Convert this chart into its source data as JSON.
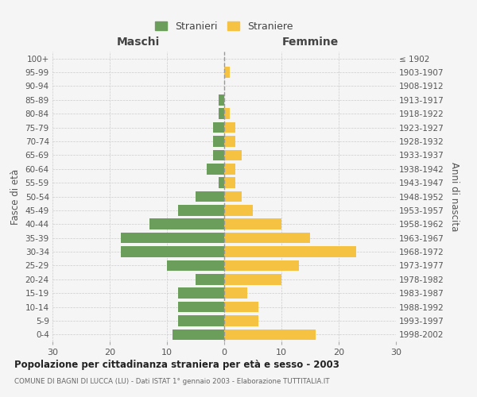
{
  "age_groups": [
    "0-4",
    "5-9",
    "10-14",
    "15-19",
    "20-24",
    "25-29",
    "30-34",
    "35-39",
    "40-44",
    "45-49",
    "50-54",
    "55-59",
    "60-64",
    "65-69",
    "70-74",
    "75-79",
    "80-84",
    "85-89",
    "90-94",
    "95-99",
    "100+"
  ],
  "birth_years": [
    "1998-2002",
    "1993-1997",
    "1988-1992",
    "1983-1987",
    "1978-1982",
    "1973-1977",
    "1968-1972",
    "1963-1967",
    "1958-1962",
    "1953-1957",
    "1948-1952",
    "1943-1947",
    "1938-1942",
    "1933-1937",
    "1928-1932",
    "1923-1927",
    "1918-1922",
    "1913-1917",
    "1908-1912",
    "1903-1907",
    "≤ 1902"
  ],
  "males": [
    9,
    8,
    8,
    8,
    5,
    10,
    18,
    18,
    13,
    8,
    5,
    1,
    3,
    2,
    2,
    2,
    1,
    1,
    0,
    0,
    0
  ],
  "females": [
    16,
    6,
    6,
    4,
    10,
    13,
    23,
    15,
    10,
    5,
    3,
    2,
    2,
    3,
    2,
    2,
    1,
    0,
    0,
    1,
    0
  ],
  "male_color": "#6a9e5a",
  "female_color": "#f5c242",
  "background_color": "#f5f5f5",
  "grid_color": "#cccccc",
  "title": "Popolazione per cittadinanza straniera per età e sesso - 2003",
  "subtitle": "COMUNE DI BAGNI DI LUCCA (LU) - Dati ISTAT 1° gennaio 2003 - Elaborazione TUTTITALIA.IT",
  "xlabel_left": "Maschi",
  "xlabel_right": "Femmine",
  "ylabel_left": "Fasce di età",
  "ylabel_right": "Anni di nascita",
  "legend_males": "Stranieri",
  "legend_females": "Straniere",
  "xlim": 30,
  "xticks": [
    -30,
    -20,
    -10,
    0,
    10,
    20,
    30
  ],
  "xtick_labels": [
    "30",
    "20",
    "10",
    "0",
    "10",
    "20",
    "30"
  ]
}
